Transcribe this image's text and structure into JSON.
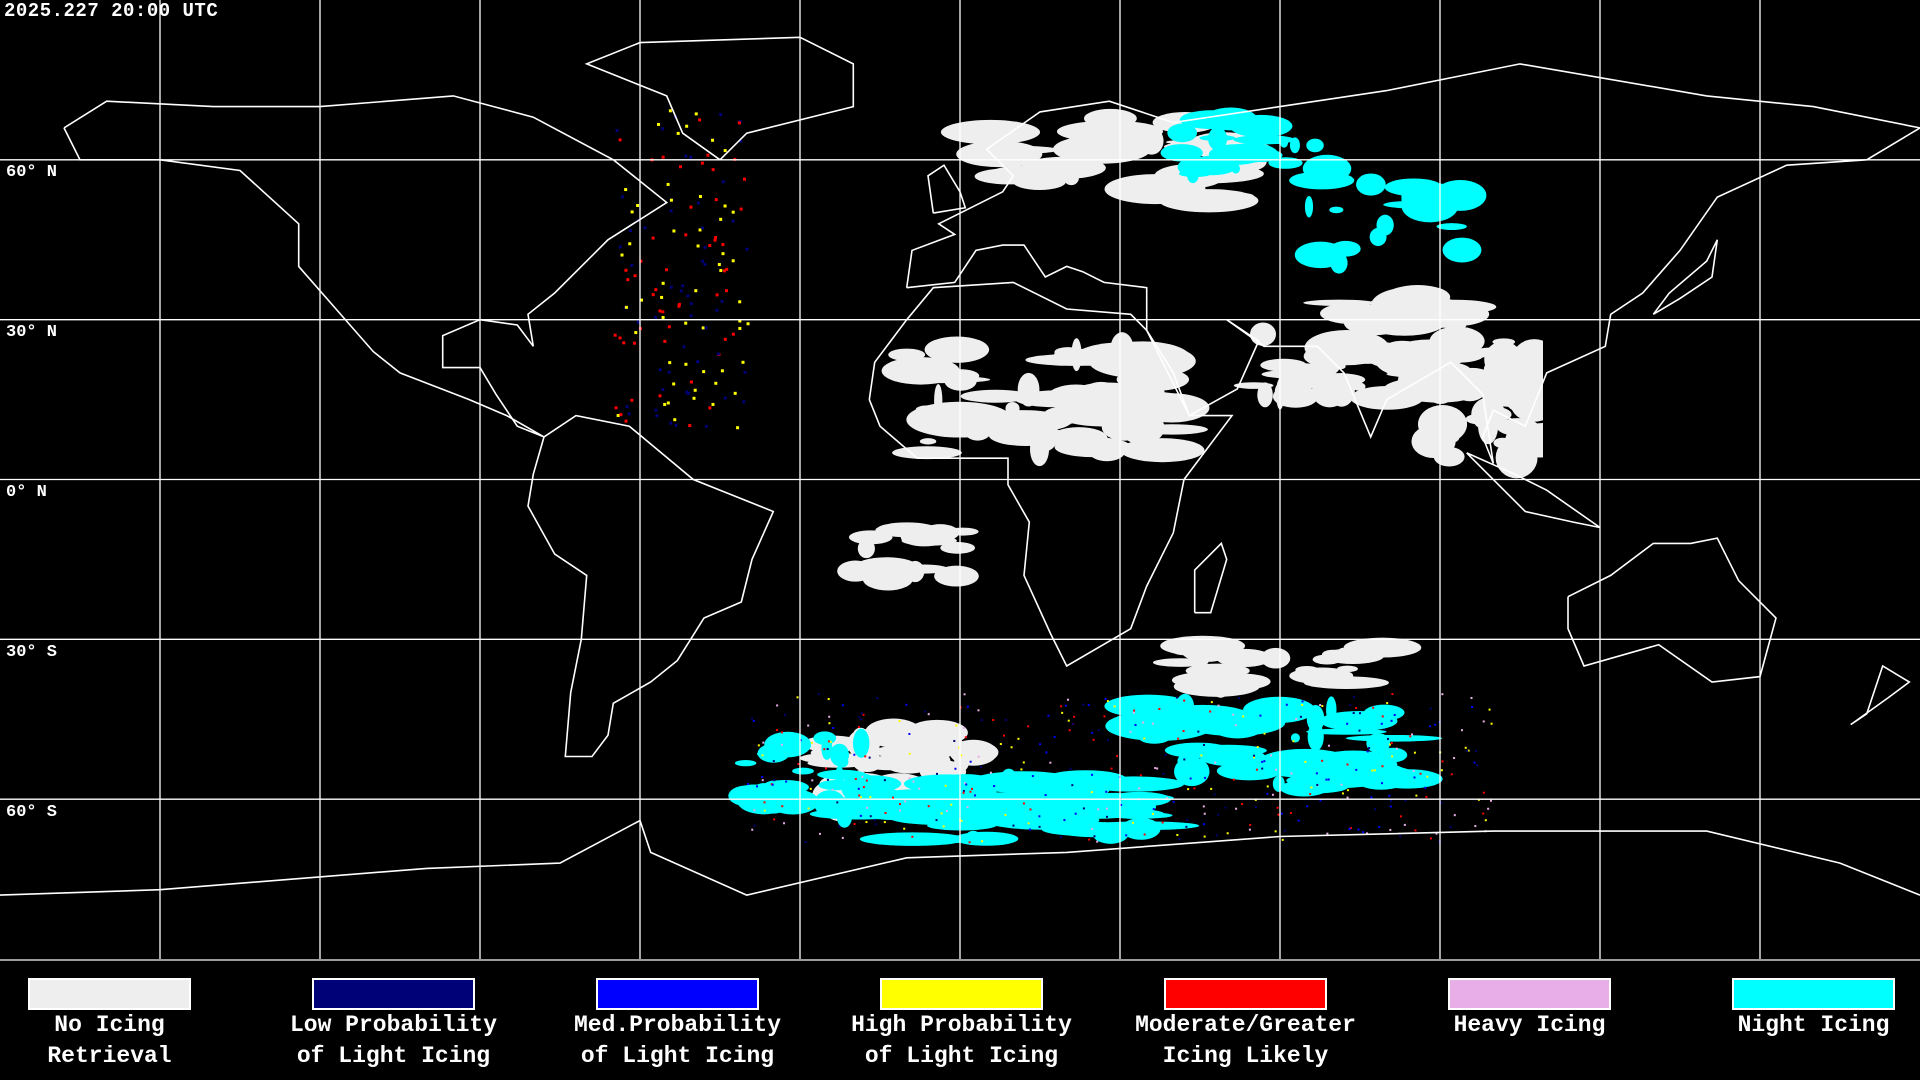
{
  "title": "2025.227 20:00 UTC",
  "lat_labels": [
    "60° N",
    "30° N",
    "0° N",
    "30° S",
    "60° S"
  ],
  "legend": [
    {
      "line1": "No Icing",
      "line2": "Retrieval",
      "color": "#eeeeee"
    },
    {
      "line1": "Low Probability",
      "line2": "of Light Icing",
      "color": "#000077"
    },
    {
      "line1": "Med.Probability",
      "line2": "of Light Icing",
      "color": "#0000ff"
    },
    {
      "line1": "High Probability",
      "line2": "of Light Icing",
      "color": "#ffff00"
    },
    {
      "line1": "Moderate/Greater",
      "line2": "Icing Likely",
      "color": "#ff0000"
    },
    {
      "line1": "Heavy Icing",
      "line2": "",
      "color": "#e8aee8"
    },
    {
      "line1": "Night Icing",
      "line2": "",
      "color": "#00ffff"
    }
  ],
  "colors": {
    "background": "#000000",
    "grid": "#ffffff",
    "coastline": "#ffffff"
  }
}
